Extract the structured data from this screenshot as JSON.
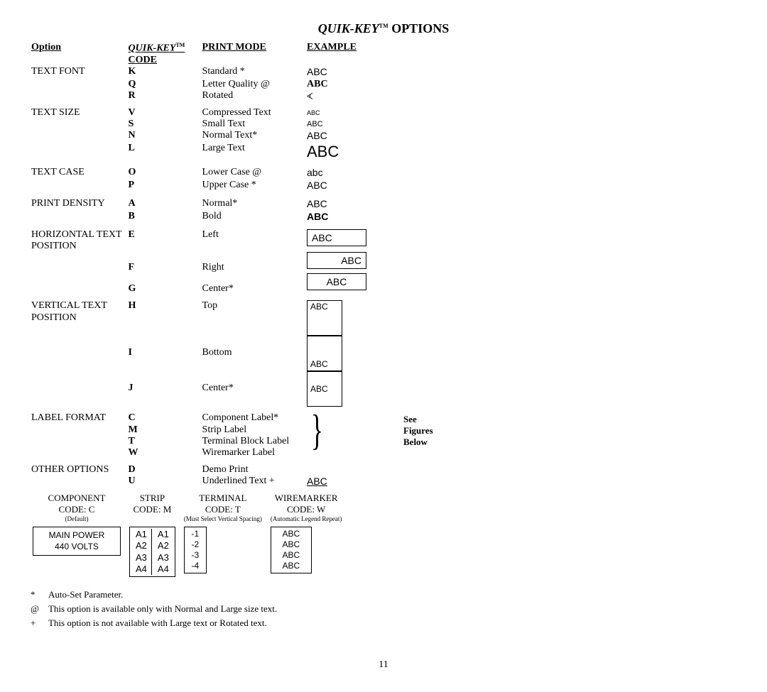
{
  "title_part1": "QUIK-KEY",
  "title_tm": "TM",
  "title_part2": " OPTIONS",
  "headers": {
    "option": "Option",
    "code_part1": "QUIK-KEY",
    "code_tm": "TM",
    "code_part2": " CODE",
    "mode": "PRINT MODE",
    "example": "EXAMPLE"
  },
  "groups": [
    {
      "option": "TEXT FONT",
      "rows": [
        {
          "code": "K",
          "mode": "Standard *",
          "example": "ABC",
          "ex_class": "sans"
        },
        {
          "code": "Q",
          "mode": "Letter Quality  @",
          "example": "ABC",
          "ex_class": "bold"
        },
        {
          "code": "R",
          "mode": "Rotated",
          "example": "ᗅ",
          "ex_class": "rotated"
        }
      ]
    },
    {
      "option": "TEXT SIZE",
      "rows": [
        {
          "code": "V",
          "mode": "Compressed Text",
          "example": "ABC",
          "ex_class": "sans tiny"
        },
        {
          "code": "S",
          "mode": "Small Text",
          "example": "ABC",
          "ex_class": "sans sm"
        },
        {
          "code": "N",
          "mode": "Normal Text*",
          "example": "ABC",
          "ex_class": "sans nm"
        },
        {
          "code": "L",
          "mode": "Large Text",
          "example": "ABC",
          "ex_class": "sans lg"
        }
      ]
    },
    {
      "option": "TEXT CASE",
      "rows": [
        {
          "code": "O",
          "mode": "Lower Case @",
          "example": "abc",
          "ex_class": "sans"
        },
        {
          "code": "P",
          "mode": "Upper Case *",
          "example": "ABC",
          "ex_class": "sans"
        }
      ]
    },
    {
      "option": "PRINT DENSITY",
      "rows": [
        {
          "code": "A",
          "mode": "Normal*",
          "example": "ABC",
          "ex_class": "sans"
        },
        {
          "code": "B",
          "mode": "Bold",
          "example": "ABC",
          "ex_class": "sans bold"
        }
      ]
    }
  ],
  "hpos": {
    "option": "HORIZONTAL TEXT POSITION",
    "rows": [
      {
        "code": "E",
        "mode": "Left",
        "align": "box-left"
      },
      {
        "code": "F",
        "mode": "Right",
        "align": "box-right"
      },
      {
        "code": "G",
        "mode": "Center*",
        "align": "box-center"
      }
    ],
    "sample": "ABC"
  },
  "vpos": {
    "option": "VERTICAL TEXT POSITION",
    "rows": [
      {
        "code": "H",
        "mode": "Top",
        "cls": "vtop"
      },
      {
        "code": "I",
        "mode": "Bottom",
        "cls": "vbot"
      },
      {
        "code": "J",
        "mode": "Center*",
        "cls": "vctr"
      }
    ],
    "sample": "ABC"
  },
  "labelfmt": {
    "option": "LABEL FORMAT",
    "rows": [
      {
        "code": "C",
        "mode": "Component Label*"
      },
      {
        "code": "M",
        "mode": "Strip Label"
      },
      {
        "code": "T",
        "mode": "Terminal Block Label"
      },
      {
        "code": "W",
        "mode": "Wiremarker Label"
      }
    ],
    "see": "See Figures",
    "below": "Below"
  },
  "other": {
    "option": "OTHER OPTIONS",
    "rows": [
      {
        "code": "D",
        "mode": "Demo Print",
        "example": ""
      },
      {
        "code": "U",
        "mode": "Underlined Text +",
        "example": "ABC",
        "ex_class": "sans underline"
      }
    ]
  },
  "figures": {
    "component": {
      "title": "COMPONENT",
      "code": "CODE: C",
      "sub": "(Default)",
      "line1": "MAIN POWER",
      "line2": "440 VOLTS"
    },
    "strip": {
      "title": "STRIP",
      "code": "CODE:  M",
      "rows": [
        "A1",
        "A2",
        "A3",
        "A4"
      ]
    },
    "terminal": {
      "title": "TERMINAL",
      "code": "CODE: T",
      "sub": "(Must Select Vertical Spacing)",
      "rows": [
        "-1",
        "-2",
        "-3",
        "-4"
      ]
    },
    "wiremarker": {
      "title": "WIREMARKER",
      "code": "CODE: W",
      "sub": "(Automatic Legend Repeat)",
      "rows": [
        "ABC",
        "ABC",
        "ABC",
        "ABC"
      ]
    }
  },
  "notes": [
    {
      "sym": "*",
      "text": "Auto-Set Parameter."
    },
    {
      "sym": "@",
      "text": "This option is available only with Normal and Large size text."
    },
    {
      "sym": "+",
      "text": "This option is not available with Large text or Rotated text."
    }
  ],
  "page": "11"
}
